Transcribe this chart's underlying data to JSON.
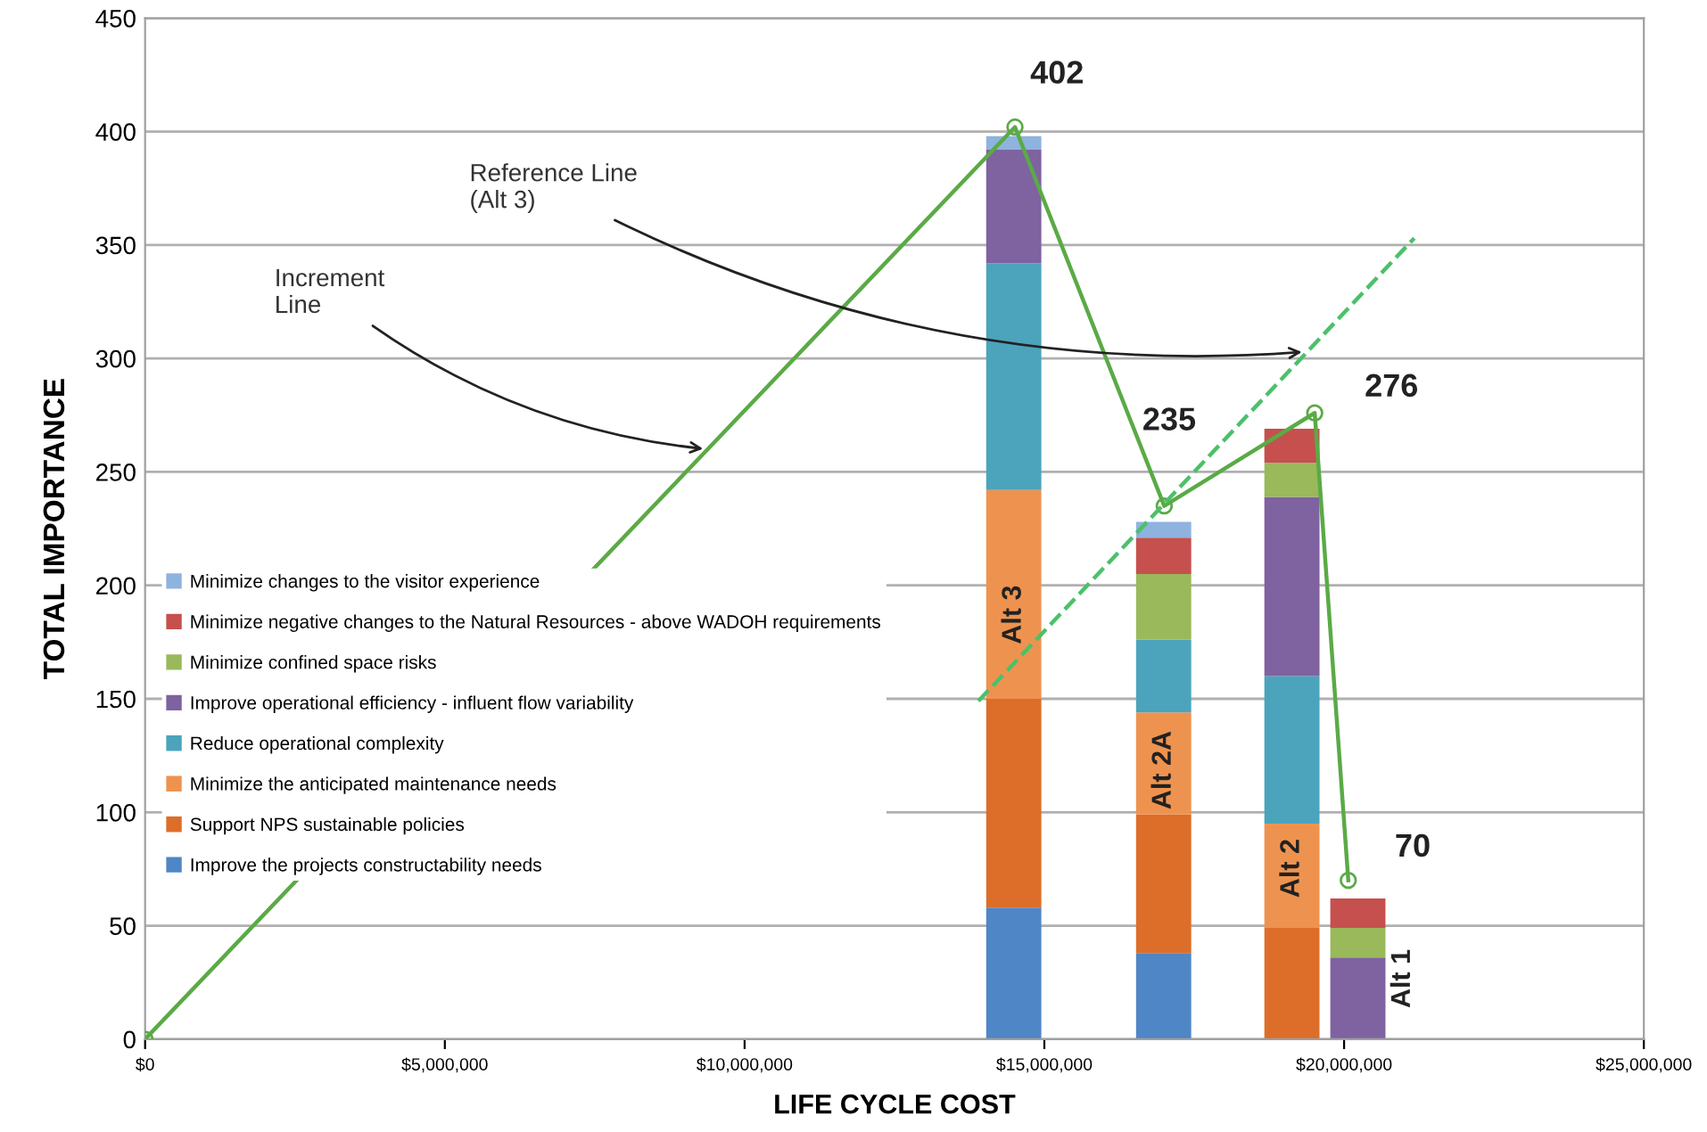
{
  "chart_data": {
    "type": "bar",
    "stacked": true,
    "x": [
      14490000,
      16990000,
      19130000,
      20230000
    ],
    "series": [
      {
        "name": "Improve the projects constructability needs",
        "color": "#4f86c6",
        "values": [
          58,
          38,
          0,
          0
        ]
      },
      {
        "name": "Support NPS sustainable policies",
        "color": "#dd6e2a",
        "values": [
          92,
          61,
          49,
          0
        ]
      },
      {
        "name": "Minimize the anticipated maintenance needs",
        "color": "#ee934f",
        "values": [
          92,
          45,
          46,
          0
        ]
      },
      {
        "name": "Reduce operational complexity",
        "color": "#4ba4bc",
        "values": [
          100,
          32,
          65,
          0
        ]
      },
      {
        "name": "Improve operational efficiency - influent flow variability",
        "color": "#7f62a0",
        "values": [
          50,
          0,
          79,
          36
        ]
      },
      {
        "name": "Minimize confined space risks",
        "color": "#99b95a",
        "values": [
          0,
          29,
          15,
          13
        ]
      },
      {
        "name": "Minimize negative changes to the Natural Resources - above WADOH requirements",
        "color": "#c5504d",
        "values": [
          0,
          16,
          15,
          13
        ]
      },
      {
        "name": "Minimize changes to the visitor experience",
        "color": "#8fb3df",
        "values": [
          6,
          7,
          0,
          0
        ]
      },
      {
        "type": "line",
        "color": "#5aaa46",
        "x": [
          0,
          14510000,
          17000000,
          19510000,
          20070000
        ],
        "values": [
          0,
          402,
          235,
          276,
          70
        ],
        "value_labels": [
          null,
          "402",
          "235",
          "276",
          "70"
        ],
        "marker": "circle",
        "line_style": "solid"
      },
      {
        "type": "line",
        "color": "#4cc06a",
        "x": [
          13900000,
          21170000
        ],
        "values": [
          149,
          353
        ],
        "line_style": "dashed"
      }
    ],
    "xlim": [
      0,
      25000000
    ],
    "xticks": [
      {
        "value": 0,
        "label": "$0"
      },
      {
        "value": 5000000,
        "label": "$5,000,000"
      },
      {
        "value": 10000000,
        "label": "$10,000,000"
      },
      {
        "value": 15000000,
        "label": "$15,000,000"
      },
      {
        "value": 20000000,
        "label": "$20,000,000"
      },
      {
        "value": 25000000,
        "label": "$25,000,000"
      }
    ],
    "ylim": [
      0,
      450
    ],
    "yticks": [
      0,
      50,
      100,
      150,
      200,
      250,
      300,
      350,
      400,
      450
    ],
    "xlabel": "LIFE CYCLE COST",
    "ylabel": "TOTAL IMPORTANCE",
    "grid": "y",
    "legend": "left",
    "annotations": [
      "Alt 3",
      "Alt 2A",
      "Alt 2",
      "Alt 1",
      {
        "text": "Increment\nLine",
        "x": 9390000,
        "y": 260
      },
      {
        "text": "Reference Line\n(Alt 3)",
        "x": 19380000,
        "y": 303
      }
    ]
  }
}
